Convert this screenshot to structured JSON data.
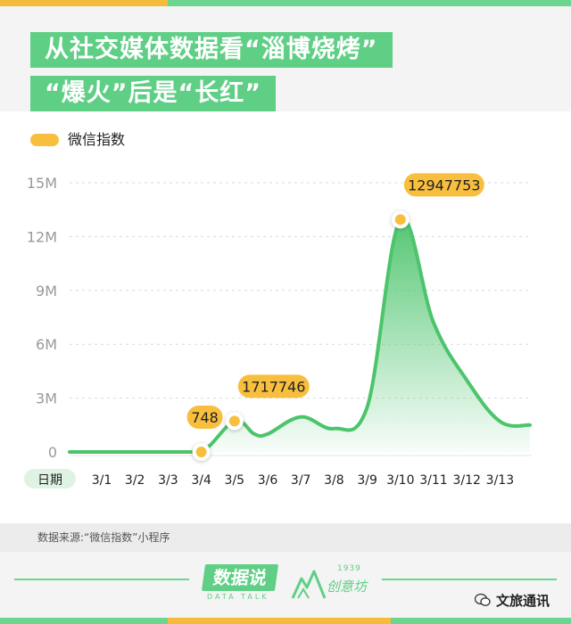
{
  "header": {
    "title_line1": "从社交媒体数据看“淄博烧烤”",
    "title_line2": "“爆火”后是“长红”"
  },
  "source": "数据来源:“微信指数”小程序",
  "footer": {
    "brand": "数据说",
    "brand_sub": "DATA TALK",
    "logo_year": "1939",
    "logo_name": "创意坊",
    "watermark": "文旅通讯"
  },
  "colors": {
    "green": "#5fcf85",
    "line": "#4cc46c",
    "yellow": "#f8bf3e"
  },
  "chart_data": {
    "type": "area",
    "title": "",
    "xlabel": "日期",
    "ylabel": "",
    "legend": {
      "position": "top-left",
      "entries": [
        "微信指数"
      ]
    },
    "x": [
      "3/1",
      "3/2",
      "3/3",
      "3/4",
      "3/5",
      "3/6",
      "3/7",
      "3/8",
      "3/9",
      "3/10",
      "3/11",
      "3/12",
      "3/13"
    ],
    "ylim": [
      0,
      15000000
    ],
    "y_ticks": [
      {
        "value": 0,
        "label": "0"
      },
      {
        "value": 3000000,
        "label": "3M"
      },
      {
        "value": 6000000,
        "label": "6M"
      },
      {
        "value": 9000000,
        "label": "9M"
      },
      {
        "value": 12000000,
        "label": "12M"
      },
      {
        "value": 15000000,
        "label": "15M"
      }
    ],
    "grid": true,
    "series": [
      {
        "name": "微信指数",
        "points": [
          {
            "x": "2/28",
            "y": 0
          },
          {
            "x": "3/1",
            "y": 0
          },
          {
            "x": "3/2",
            "y": 0
          },
          {
            "x": "3/3",
            "y": 0
          },
          {
            "x": "3/4",
            "y": 748
          },
          {
            "x": "3/5",
            "y": 1717746
          },
          {
            "x": "3/5.6",
            "y": 1000000
          },
          {
            "x": "3/6",
            "y": 1000000
          },
          {
            "x": "3/7",
            "y": 1950000
          },
          {
            "x": "3/8",
            "y": 1300000
          },
          {
            "x": "3/9",
            "y": 2500000
          },
          {
            "x": "3/10",
            "y": 12947753
          },
          {
            "x": "3/11",
            "y": 7200000
          },
          {
            "x": "3/12",
            "y": 4000000
          },
          {
            "x": "3/13",
            "y": 1700000
          },
          {
            "x": "3/14",
            "y": 1500000
          }
        ]
      }
    ],
    "annotations": [
      {
        "x": "3/4",
        "label": "748"
      },
      {
        "x": "3/5",
        "label": "1717746"
      },
      {
        "x": "3/10",
        "label": "12947753"
      }
    ]
  }
}
